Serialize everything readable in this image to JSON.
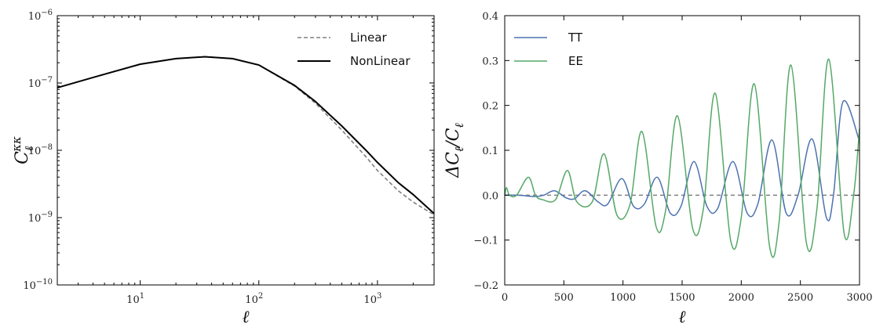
{
  "chart_data": [
    {
      "type": "line",
      "xlabel": "ℓ",
      "ylabel_main": "C",
      "ylabel_sub": "ℓ",
      "ylabel_sup": "κκ",
      "xscale": "log",
      "yscale": "log",
      "xlim": [
        2,
        3000
      ],
      "ylim": [
        1e-10,
        1e-06
      ],
      "x_ticks": [
        {
          "value": 10,
          "base": "10",
          "exp": "1"
        },
        {
          "value": 100,
          "base": "10",
          "exp": "2"
        },
        {
          "value": 1000,
          "base": "10",
          "exp": "3"
        }
      ],
      "y_ticks": [
        {
          "value": 1e-10,
          "base": "10",
          "exp": "−10"
        },
        {
          "value": 1e-09,
          "base": "10",
          "exp": "−9"
        },
        {
          "value": 1e-08,
          "base": "10",
          "exp": "−8"
        },
        {
          "value": 1e-07,
          "base": "10",
          "exp": "−7"
        },
        {
          "value": 1e-06,
          "base": "10",
          "exp": "−6"
        }
      ],
      "legend_position": "top-right",
      "series": [
        {
          "name": "Linear",
          "color": "#808080",
          "style": "dashed",
          "x": [
            2,
            5,
            10,
            20,
            35,
            60,
            100,
            200,
            300,
            500,
            800,
            1000,
            1500,
            2000,
            3000
          ],
          "y": [
            8.5e-08,
            1.35e-07,
            1.9e-07,
            2.3e-07,
            2.45e-07,
            2.3e-07,
            1.85e-07,
            9e-08,
            5e-08,
            2e-08,
            8e-09,
            5e-09,
            2.5e-09,
            1.7e-09,
            1.1e-09
          ]
        },
        {
          "name": "NonLinear",
          "color": "#000000",
          "style": "solid",
          "x": [
            2,
            5,
            10,
            20,
            35,
            60,
            100,
            200,
            300,
            500,
            800,
            1000,
            1500,
            2000,
            3000
          ],
          "y": [
            8.5e-08,
            1.35e-07,
            1.9e-07,
            2.3e-07,
            2.45e-07,
            2.3e-07,
            1.85e-07,
            9.2e-08,
            5.3e-08,
            2.3e-08,
            1e-08,
            6.6e-09,
            3.3e-09,
            2.2e-09,
            1.15e-09
          ]
        }
      ]
    },
    {
      "type": "line",
      "xlabel": "ℓ",
      "ylabel": "ΔC_ℓ/C_ℓ",
      "xlim": [
        0,
        3000
      ],
      "ylim": [
        -0.2,
        0.4
      ],
      "x_ticks": [
        0,
        500,
        1000,
        1500,
        2000,
        2500,
        3000
      ],
      "y_ticks": [
        "−0.2",
        "−0.1",
        "0.0",
        "0.1",
        "0.2",
        "0.3",
        "0.4"
      ],
      "y_tick_values": [
        -0.2,
        -0.1,
        0.0,
        0.1,
        0.2,
        0.3,
        0.4
      ],
      "zero_line": {
        "y": 0,
        "color": "#808080",
        "style": "dashed"
      },
      "legend_position": "top-left",
      "series": [
        {
          "name": "TT",
          "color": "#4c72b0",
          "x": [
            0,
            120,
            250,
            330,
            420,
            520,
            590,
            680,
            790,
            870,
            990,
            1090,
            1180,
            1290,
            1400,
            1490,
            1600,
            1710,
            1800,
            1930,
            2050,
            2140,
            2260,
            2380,
            2480,
            2600,
            2720,
            2780,
            2860,
            3000
          ],
          "y": [
            0.0,
            0.0,
            -0.003,
            0.0,
            0.01,
            -0.006,
            -0.008,
            0.01,
            -0.015,
            -0.02,
            0.037,
            -0.025,
            -0.02,
            0.04,
            -0.04,
            -0.025,
            0.075,
            -0.025,
            -0.03,
            0.075,
            -0.04,
            -0.02,
            0.123,
            -0.04,
            0.0,
            0.125,
            -0.05,
            0.0,
            0.208,
            0.12
          ]
        },
        {
          "name": "EE",
          "color": "#55a868",
          "x": [
            0,
            15,
            40,
            100,
            200,
            260,
            320,
            430,
            530,
            610,
            740,
            840,
            950,
            1060,
            1160,
            1280,
            1360,
            1460,
            1590,
            1680,
            1780,
            1910,
            2000,
            2110,
            2240,
            2320,
            2420,
            2550,
            2640,
            2740,
            2870,
            2950,
            3000
          ],
          "y": [
            0.0,
            0.017,
            0.0,
            0.0,
            0.04,
            0.0,
            -0.01,
            -0.01,
            0.055,
            -0.015,
            -0.015,
            0.092,
            -0.045,
            -0.02,
            0.142,
            -0.07,
            -0.035,
            0.177,
            -0.075,
            -0.03,
            0.227,
            -0.1,
            -0.05,
            0.248,
            -0.115,
            -0.06,
            0.29,
            -0.105,
            -0.03,
            0.303,
            -0.085,
            0.0,
            0.148
          ]
        }
      ]
    }
  ]
}
